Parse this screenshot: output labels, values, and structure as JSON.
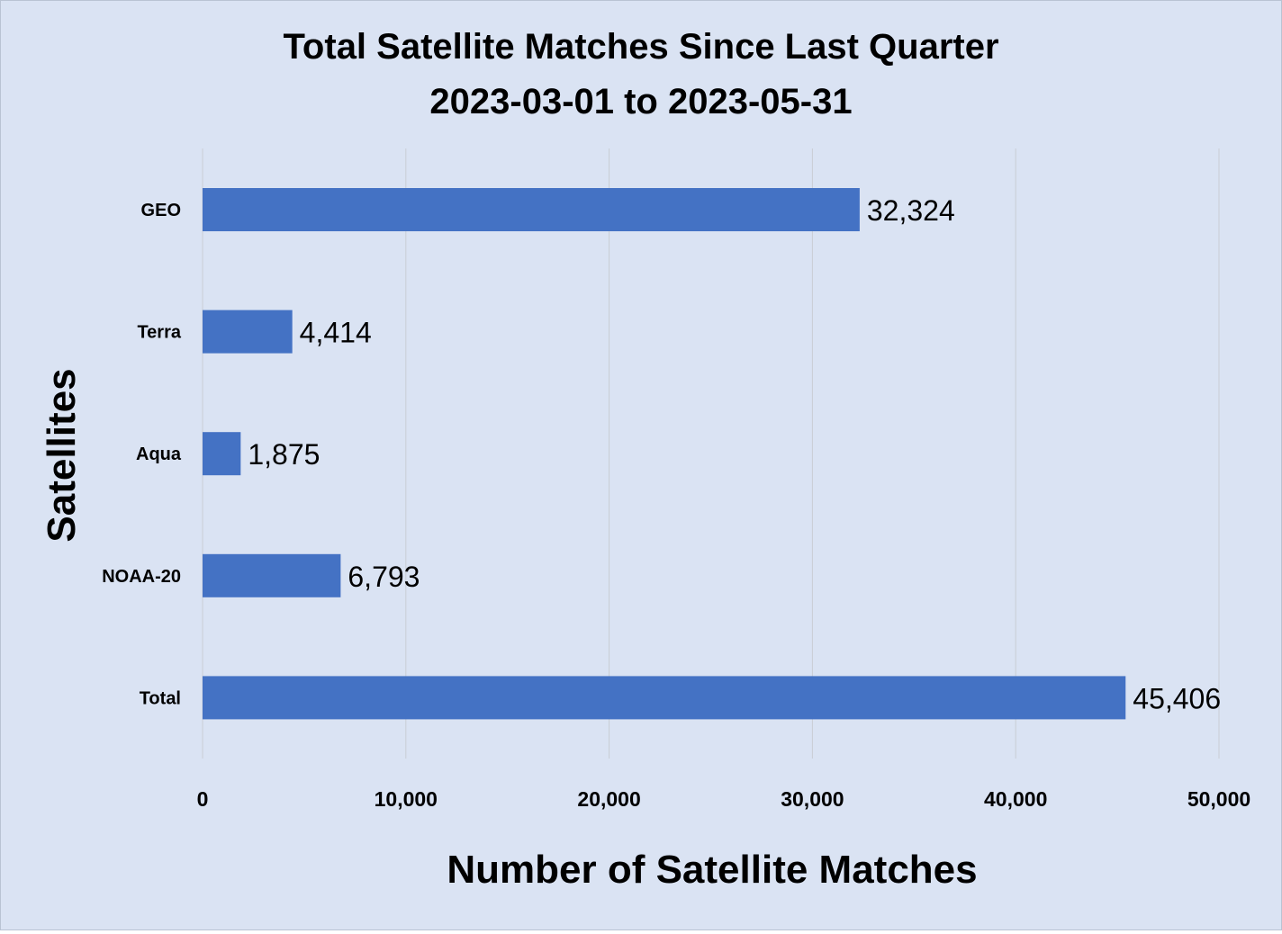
{
  "chart_data": {
    "type": "bar",
    "orientation": "horizontal",
    "title": "Total Satellite Matches Since Last Quarter",
    "subtitle": "2023-03-01 to 2023-05-31",
    "xlabel": "Number of Satellite Matches",
    "ylabel": "Satellites",
    "categories": [
      "GEO",
      "Terra",
      "Aqua",
      "NOAA-20",
      "Total"
    ],
    "values": [
      32324,
      4414,
      1875,
      6793,
      45406
    ],
    "data_labels": [
      "32,324",
      "4,414",
      "1,875",
      "6,793",
      "45,406"
    ],
    "xlim": [
      0,
      50000
    ],
    "x_ticks": [
      0,
      10000,
      20000,
      30000,
      40000,
      50000
    ],
    "x_tick_labels": [
      "0",
      "10,000",
      "20,000",
      "30,000",
      "40,000",
      "50,000"
    ],
    "grid": "vertical",
    "legend": "none"
  },
  "colors": {
    "background": "#dae3f3",
    "bar": "#4472c4",
    "gridline": "#c9cdd4",
    "text": "#000000"
  }
}
